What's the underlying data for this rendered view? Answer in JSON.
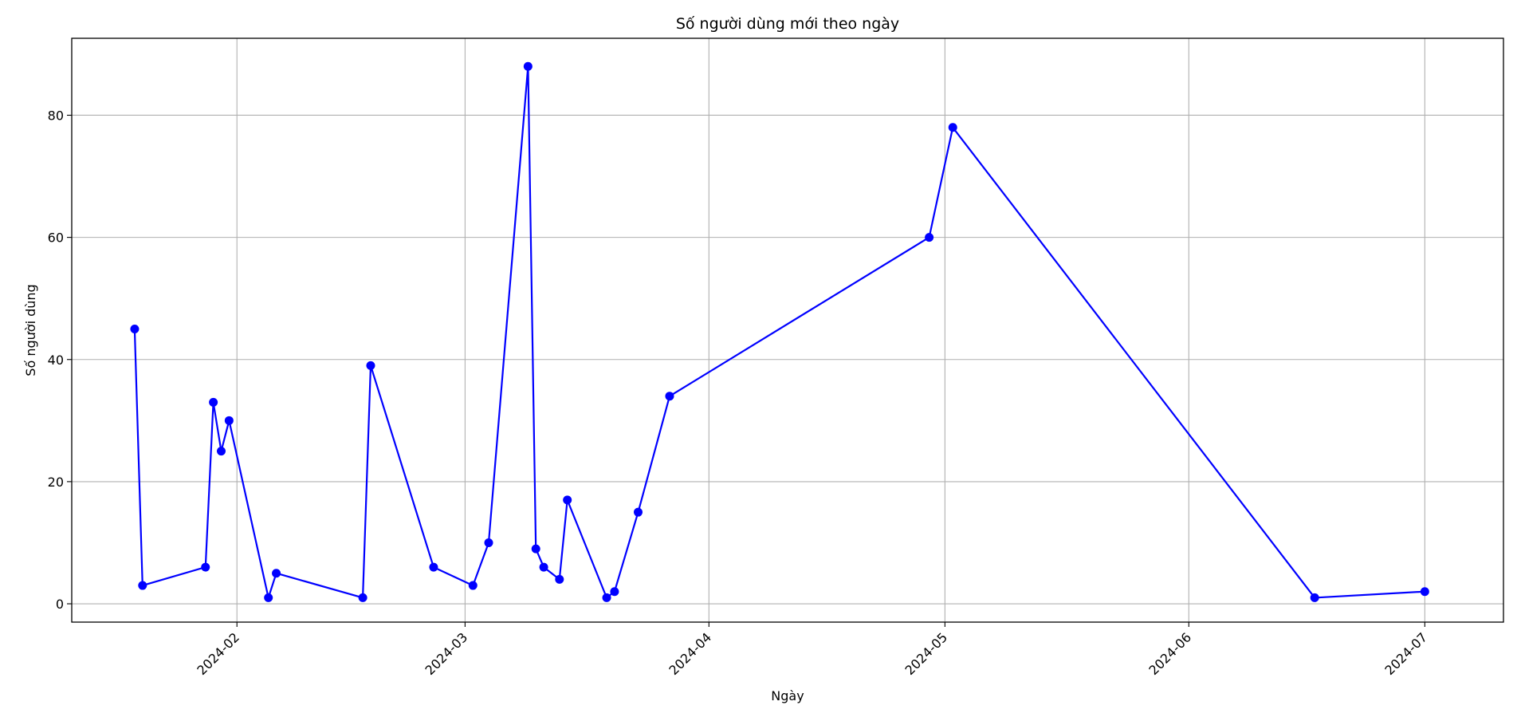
{
  "chart_data": {
    "type": "line",
    "title": "Số người dùng mới theo ngày",
    "xlabel": "Ngày",
    "ylabel": "Số người dùng",
    "x_ticks": [
      "2024-02",
      "2024-03",
      "2024-04",
      "2024-05",
      "2024-06",
      "2024-07"
    ],
    "y_ticks": [
      "0",
      "20",
      "40",
      "60",
      "80"
    ],
    "xlim": [
      "2024-01-11",
      "2024-07-11"
    ],
    "ylim": [
      -3,
      92.6
    ],
    "grid": true,
    "color": "#0000ff",
    "series": [
      {
        "x": [
          "2024-01-19",
          "2024-01-20",
          "2024-01-28",
          "2024-01-29",
          "2024-01-30",
          "2024-01-31",
          "2024-02-05",
          "2024-02-06",
          "2024-02-17",
          "2024-02-18",
          "2024-02-26",
          "2024-03-02",
          "2024-03-04",
          "2024-03-09",
          "2024-03-10",
          "2024-03-11",
          "2024-03-13",
          "2024-03-14",
          "2024-03-19",
          "2024-03-20",
          "2024-03-23",
          "2024-03-27",
          "2024-04-29",
          "2024-05-02",
          "2024-06-17",
          "2024-07-01"
        ],
        "y": [
          45,
          3,
          6,
          33,
          25,
          30,
          1,
          5,
          1,
          39,
          6,
          3,
          10,
          88,
          9,
          6,
          4,
          17,
          1,
          2,
          15,
          34,
          60,
          78,
          1,
          2
        ]
      }
    ]
  }
}
